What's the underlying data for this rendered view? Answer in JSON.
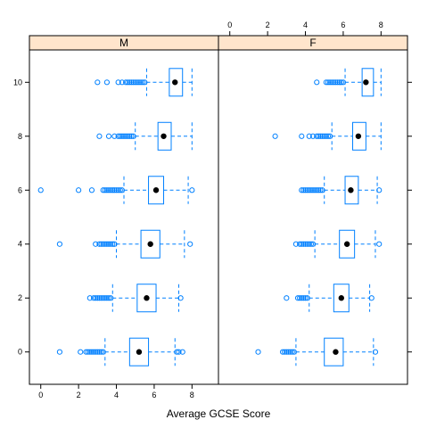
{
  "chart_data": {
    "type": "boxplot",
    "xlabel": "Average GCSE Score",
    "ylabel": "",
    "xlim": [
      -0.6,
      9.4
    ],
    "ylim": [
      -1.2,
      11.2
    ],
    "x_ticks": [
      0,
      2,
      4,
      6,
      8
    ],
    "y_ticks": [
      0,
      2,
      4,
      6,
      8,
      10
    ],
    "box_color": "#0080ff",
    "median_color": "#000000",
    "strip_color": "#ffe5cc",
    "panels": [
      {
        "strip": "M",
        "boxes": [
          {
            "y": 0,
            "whisker_low": 3.4,
            "q1": 4.7,
            "median": 5.2,
            "q3": 5.7,
            "whisker_high": 7.1,
            "outliers": [
              1.0,
              2.1,
              2.4,
              2.5,
              2.6,
              2.7,
              2.8,
              2.9,
              3.0,
              3.1,
              3.2,
              3.3,
              7.2,
              7.3,
              7.5
            ]
          },
          {
            "y": 2,
            "whisker_low": 3.8,
            "q1": 5.1,
            "median": 5.6,
            "q3": 6.1,
            "whisker_high": 7.3,
            "outliers": [
              2.6,
              2.8,
              2.9,
              3.0,
              3.1,
              3.2,
              3.3,
              3.4,
              3.5,
              3.6,
              3.7,
              7.4
            ]
          },
          {
            "y": 4,
            "whisker_low": 4.0,
            "q1": 5.3,
            "median": 5.8,
            "q3": 6.3,
            "whisker_high": 7.6,
            "outliers": [
              1.0,
              2.9,
              3.1,
              3.2,
              3.3,
              3.4,
              3.5,
              3.6,
              3.7,
              3.8,
              3.9,
              7.9
            ]
          },
          {
            "y": 6,
            "whisker_low": 4.4,
            "q1": 5.7,
            "median": 6.1,
            "q3": 6.5,
            "whisker_high": 7.8,
            "outliers": [
              0.0,
              2.0,
              2.7,
              3.3,
              3.4,
              3.5,
              3.6,
              3.7,
              3.8,
              3.9,
              4.0,
              4.1,
              4.2,
              4.3,
              8.0
            ]
          },
          {
            "y": 8,
            "whisker_low": 5.0,
            "q1": 6.2,
            "median": 6.5,
            "q3": 6.9,
            "whisker_high": 8.0,
            "outliers": [
              3.1,
              3.6,
              3.9,
              4.1,
              4.2,
              4.3,
              4.4,
              4.5,
              4.6,
              4.7,
              4.8,
              4.9
            ]
          },
          {
            "y": 10,
            "whisker_low": 5.6,
            "q1": 6.8,
            "median": 7.1,
            "q3": 7.5,
            "whisker_high": 8.0,
            "outliers": [
              3.0,
              3.5,
              4.1,
              4.3,
              4.5,
              4.6,
              4.7,
              4.8,
              4.9,
              5.0,
              5.1,
              5.2,
              5.3,
              5.4,
              5.5
            ]
          }
        ]
      },
      {
        "strip": "F",
        "boxes": [
          {
            "y": 0,
            "whisker_low": 3.5,
            "q1": 5.0,
            "median": 5.6,
            "q3": 6.0,
            "whisker_high": 7.6,
            "outliers": [
              1.5,
              2.8,
              2.9,
              3.0,
              3.1,
              3.2,
              3.3,
              3.4,
              7.7
            ]
          },
          {
            "y": 2,
            "whisker_low": 4.2,
            "q1": 5.5,
            "median": 5.9,
            "q3": 6.3,
            "whisker_high": 7.4,
            "outliers": [
              3.0,
              3.6,
              3.7,
              3.8,
              3.9,
              4.0,
              4.1,
              7.5
            ]
          },
          {
            "y": 4,
            "whisker_low": 4.5,
            "q1": 5.8,
            "median": 6.2,
            "q3": 6.6,
            "whisker_high": 7.7,
            "outliers": [
              3.5,
              3.7,
              3.8,
              3.9,
              4.0,
              4.1,
              4.2,
              4.3,
              4.4,
              7.9
            ]
          },
          {
            "y": 6,
            "whisker_low": 5.0,
            "q1": 6.1,
            "median": 6.4,
            "q3": 6.8,
            "whisker_high": 7.8,
            "outliers": [
              3.8,
              3.9,
              4.0,
              4.1,
              4.2,
              4.3,
              4.4,
              4.5,
              4.6,
              4.7,
              4.8,
              4.9,
              7.9
            ]
          },
          {
            "y": 8,
            "whisker_low": 5.4,
            "q1": 6.5,
            "median": 6.8,
            "q3": 7.2,
            "whisker_high": 8.0,
            "outliers": [
              2.4,
              3.8,
              4.2,
              4.4,
              4.6,
              4.7,
              4.8,
              4.9,
              5.0,
              5.1,
              5.2,
              5.3
            ]
          },
          {
            "y": 10,
            "whisker_low": 6.1,
            "q1": 7.0,
            "median": 7.2,
            "q3": 7.6,
            "whisker_high": 8.0,
            "outliers": [
              4.6,
              5.1,
              5.2,
              5.3,
              5.4,
              5.5,
              5.6,
              5.7,
              5.8,
              5.9,
              6.0
            ]
          }
        ]
      }
    ]
  }
}
